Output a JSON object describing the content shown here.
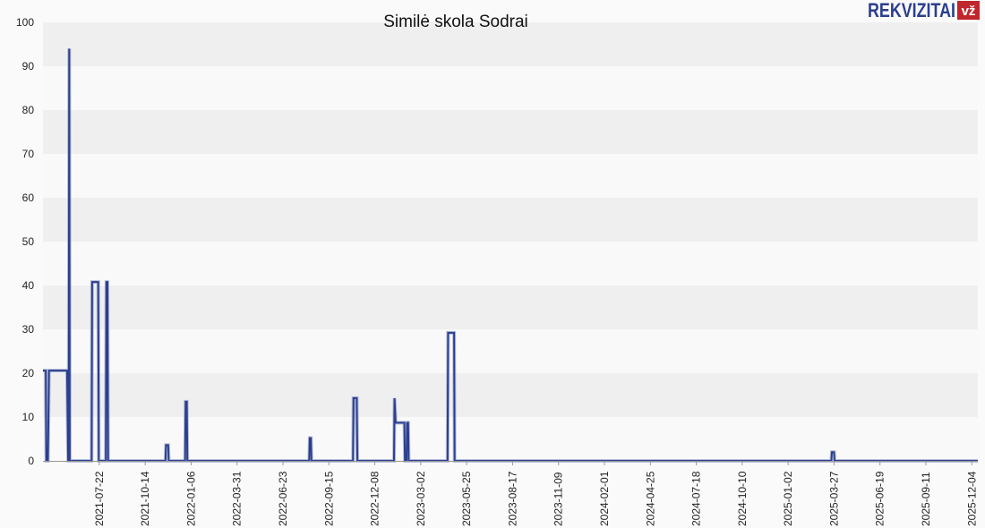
{
  "brand": {
    "name": "REKVIZITAI",
    "badge": "vž",
    "color": "#2b3f8e",
    "badge_color": "#c0262d"
  },
  "chart_data": {
    "type": "line",
    "title": "Similė skola Sodrai",
    "xlabel": "",
    "ylabel": "",
    "ylim": [
      0,
      100
    ],
    "y_ticks": [
      0,
      10,
      20,
      30,
      40,
      50,
      60,
      70,
      80,
      90,
      100
    ],
    "x_range": [
      "2021-04-10",
      "2025-12-15"
    ],
    "x_ticks": [
      "2021-07-22",
      "2021-10-14",
      "2022-01-06",
      "2022-03-31",
      "2022-06-23",
      "2022-09-15",
      "2022-12-08",
      "2023-03-02",
      "2023-05-25",
      "2023-08-17",
      "2023-11-09",
      "2024-02-01",
      "2024-04-25",
      "2024-07-18",
      "2024-10-10",
      "2025-01-02",
      "2025-03-27",
      "2025-06-19",
      "2025-09-11",
      "2025-12-04"
    ],
    "grid": true,
    "line_color": "#2b3f8e",
    "series": [
      {
        "x": [
          "2021-04-10",
          "2021-04-12",
          "2021-04-15",
          "2021-04-16",
          "2021-04-19",
          "2021-04-21",
          "2021-05-22",
          "2021-05-24",
          "2021-05-26",
          "2021-05-27",
          "2021-05-28",
          "2021-05-29",
          "2021-07-08",
          "2021-07-09",
          "2021-07-11",
          "2021-07-12",
          "2021-07-20",
          "2021-07-21",
          "2021-08-03",
          "2021-08-04",
          "2021-08-06",
          "2021-08-07",
          "2021-08-09",
          "2021-08-10",
          "2021-11-20",
          "2021-11-21",
          "2021-11-25",
          "2021-11-26",
          "2021-12-26",
          "2021-12-27",
          "2021-12-29",
          "2021-12-30",
          "2022-08-10",
          "2022-08-11",
          "2022-08-13",
          "2022-08-14",
          "2022-10-29",
          "2022-10-30",
          "2022-11-05",
          "2022-11-06",
          "2023-01-12",
          "2023-01-13",
          "2023-01-15",
          "2023-01-16",
          "2023-01-31",
          "2023-02-01",
          "2023-02-04",
          "2023-02-05",
          "2023-02-07",
          "2023-02-08",
          "2023-04-20",
          "2023-04-21",
          "2023-05-02",
          "2023-05-03",
          "2025-03-22",
          "2025-03-23",
          "2025-03-27",
          "2025-03-28",
          "2025-12-15"
        ],
        "y": [
          20.6,
          20.6,
          20.6,
          0,
          0,
          20.6,
          20.6,
          20.6,
          0,
          0,
          94,
          0,
          0,
          40.8,
          40.8,
          40.8,
          40.8,
          0,
          0,
          40.8,
          40.8,
          0,
          0,
          0,
          0,
          3.6,
          3.6,
          0,
          0,
          13.5,
          13.5,
          0,
          0,
          5.2,
          5.2,
          0,
          0,
          14.3,
          14.3,
          0,
          0,
          14.3,
          8.7,
          8.7,
          8.7,
          0,
          0,
          8.7,
          8.7,
          0,
          0,
          29.2,
          29.2,
          0,
          0,
          2,
          2,
          0,
          0
        ]
      }
    ]
  }
}
